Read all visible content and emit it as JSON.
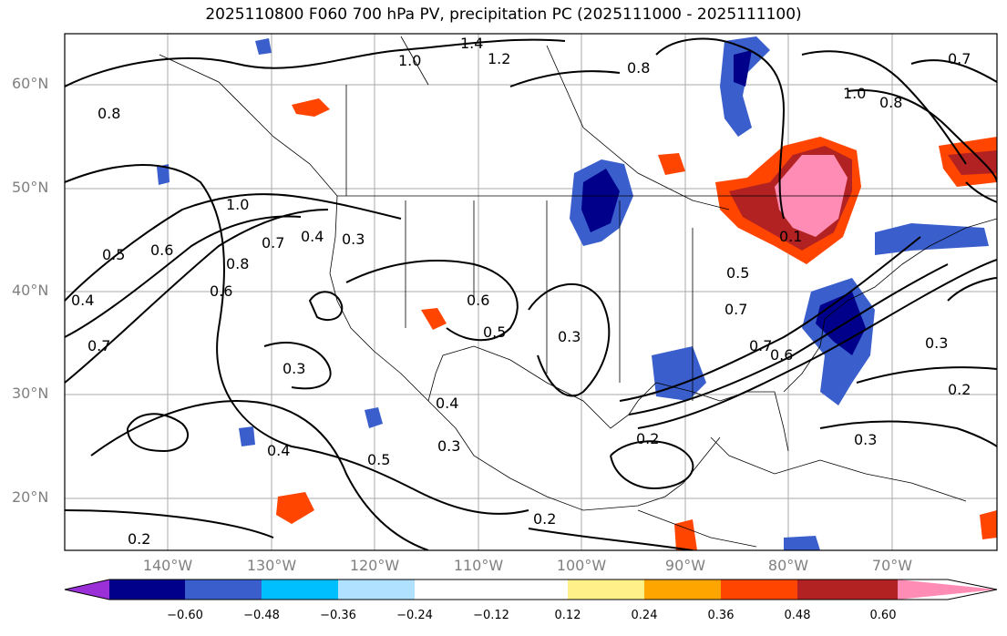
{
  "title": "2025110800 F060 700 hPa PV, precipitation PC (2025111000 - 2025111100)",
  "lat_labels": [
    "60°N",
    "50°N",
    "40°N",
    "30°N",
    "20°N"
  ],
  "lon_labels": [
    "140°W",
    "130°W",
    "120°W",
    "110°W",
    "100°W",
    "90°W",
    "80°W",
    "70°W"
  ],
  "contour_labels": [
    "1.4",
    "1.0",
    "1.2",
    "0.8",
    "0.8",
    "1.0",
    "0.7",
    "0.8",
    "1.0",
    "0.5",
    "0.6",
    "0.7",
    "0.4",
    "0.4",
    "0.3",
    "0.8",
    "0.6",
    "0.7",
    "0.4",
    "0.3",
    "0.6",
    "0.5",
    "0.3",
    "0.5",
    "0.7",
    "0.6",
    "0.7",
    "0.3",
    "0.2",
    "0.2",
    "0.3",
    "0.4",
    "0.5",
    "0.3",
    "0.2",
    "0.2",
    "0.1"
  ],
  "colorbar": {
    "ticks": [
      "−0.60",
      "−0.48",
      "−0.36",
      "−0.24",
      "−0.12",
      "0.12",
      "0.24",
      "0.36",
      "0.48",
      "0.60"
    ],
    "colors": [
      "#9b30d9",
      "#00008b",
      "#3a5fcd",
      "#00bfff",
      "#b0e2ff",
      "#ffffff",
      "#fff08a",
      "#ffa500",
      "#ff4500",
      "#b22222",
      "#ff8cb4"
    ]
  }
}
